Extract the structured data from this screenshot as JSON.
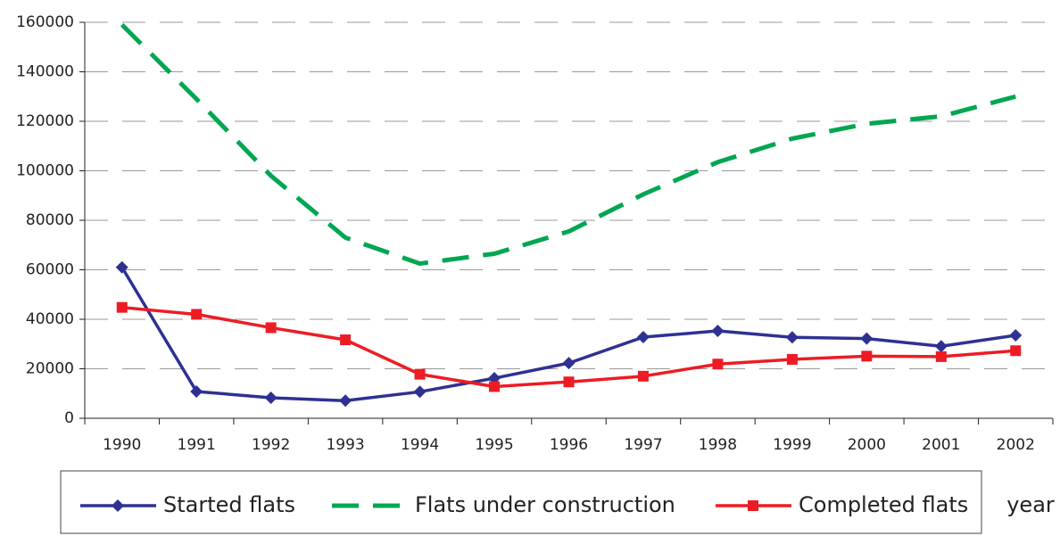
{
  "chart_data": {
    "type": "line",
    "categories": [
      "1990",
      "1991",
      "1992",
      "1993",
      "1994",
      "1995",
      "1996",
      "1997",
      "1998",
      "1999",
      "2000",
      "2001",
      "2002"
    ],
    "x_label": "year",
    "series": [
      {
        "name": "Started flats",
        "color": "#2e3192",
        "marker": "diamond",
        "dashed": false,
        "values": [
          61000,
          10800,
          8300,
          7100,
          10700,
          16200,
          22300,
          32800,
          35300,
          32700,
          32200,
          29100,
          33500
        ]
      },
      {
        "name": "Flats under construction",
        "color": "#00a651",
        "marker": "none",
        "dashed": true,
        "values": [
          159000,
          129000,
          98000,
          73000,
          62500,
          66500,
          75500,
          90500,
          103500,
          113000,
          119000,
          122000,
          130000
        ]
      },
      {
        "name": "Completed flats",
        "color": "#ed1c24",
        "marker": "square",
        "dashed": false,
        "values": [
          44800,
          42000,
          36600,
          31700,
          17800,
          12800,
          14700,
          17000,
          21900,
          23800,
          25100,
          24900,
          27300
        ]
      }
    ],
    "ylim": [
      0,
      160000
    ],
    "yticks": [
      0,
      20000,
      40000,
      60000,
      80000,
      100000,
      120000,
      140000,
      160000
    ],
    "grid": true
  }
}
